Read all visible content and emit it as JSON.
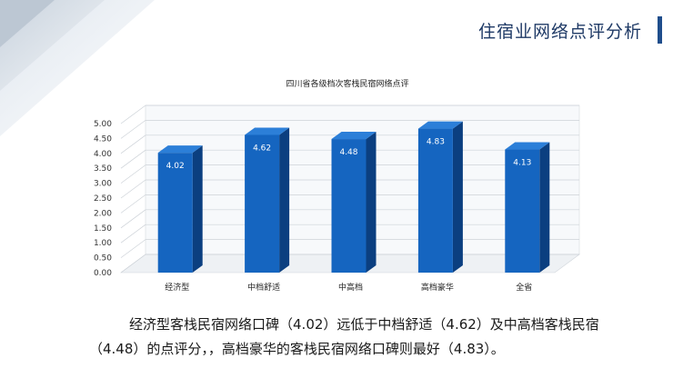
{
  "header": {
    "title": "住宿业网络点评分析"
  },
  "chart_data": {
    "type": "bar",
    "title": "四川省各级档次客栈民宿网络点评",
    "categories": [
      "经济型",
      "中档舒适",
      "中高档",
      "高档豪华",
      "全省"
    ],
    "values": [
      4.02,
      4.62,
      4.48,
      4.83,
      4.13
    ],
    "value_labels": [
      "4.02",
      "4.62",
      "4.48",
      "4.83",
      "4.13"
    ],
    "ylim": [
      0,
      5
    ],
    "yticks": [
      "0.00",
      "0.50",
      "1.00",
      "1.50",
      "2.00",
      "2.50",
      "3.00",
      "3.50",
      "4.00",
      "4.50",
      "5.00"
    ],
    "grid": true,
    "bar_color": "#1565c0",
    "xlabel": "",
    "ylabel": ""
  },
  "caption": {
    "text": "经济型客栈民宿网络口碑（4.02）远低于中档舒适（4.62）及中高档客栈民宿（4.48）的点评分，，高档豪华的客栈民宿网络口碑则最好（4.83）。"
  }
}
